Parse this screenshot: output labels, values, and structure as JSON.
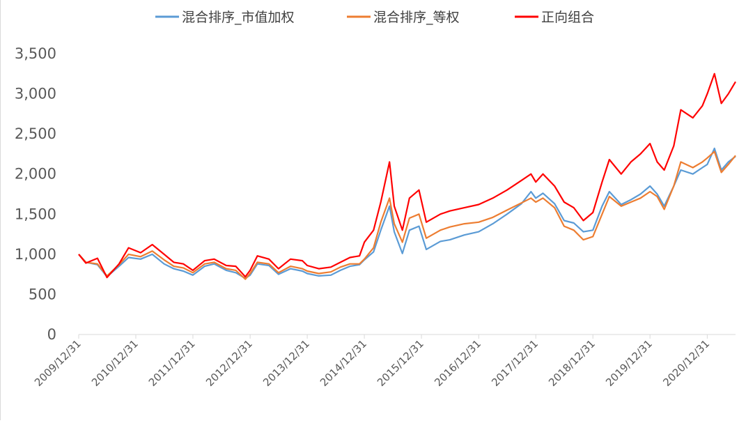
{
  "chart_data": {
    "type": "line",
    "title": "",
    "xlabel": "",
    "ylabel": "",
    "ylim": [
      0,
      3500
    ],
    "y_ticks": [
      0,
      500,
      1000,
      1500,
      2000,
      2500,
      3000,
      3500
    ],
    "y_tick_labels": [
      "0",
      "500",
      "1,000",
      "1,500",
      "2,000",
      "2,500",
      "3,000",
      "3,500"
    ],
    "x_tick_labels": [
      "2009/12/31",
      "2010/12/31",
      "2011/12/31",
      "2012/12/31",
      "2013/12/31",
      "2014/12/31",
      "2015/12/31",
      "2016/12/31",
      "2017/12/31",
      "2018/12/31",
      "2019/12/31",
      "2020/12/31"
    ],
    "x_range": [
      "2009/12/31",
      "2021/06/30"
    ],
    "grid": false,
    "legend_position": "top",
    "series": [
      {
        "name": "混合排序_市值加权",
        "color": "#5b9bd5",
        "points": [
          [
            "2009/12/31",
            1000
          ],
          [
            "2010/02/15",
            900
          ],
          [
            "2010/04/30",
            870
          ],
          [
            "2010/06/30",
            720
          ],
          [
            "2010/09/15",
            850
          ],
          [
            "2010/11/15",
            960
          ],
          [
            "2011/01/31",
            940
          ],
          [
            "2011/04/15",
            1000
          ],
          [
            "2011/06/30",
            880
          ],
          [
            "2011/08/31",
            820
          ],
          [
            "2011/10/31",
            790
          ],
          [
            "2011/12/31",
            740
          ],
          [
            "2012/03/15",
            850
          ],
          [
            "2012/05/15",
            880
          ],
          [
            "2012/07/31",
            800
          ],
          [
            "2012/09/30",
            770
          ],
          [
            "2012/11/30",
            700
          ],
          [
            "2012/12/31",
            740
          ],
          [
            "2013/02/15",
            880
          ],
          [
            "2013/04/30",
            860
          ],
          [
            "2013/06/30",
            750
          ],
          [
            "2013/09/15",
            820
          ],
          [
            "2013/11/30",
            790
          ],
          [
            "2013/12/31",
            760
          ],
          [
            "2014/03/15",
            730
          ],
          [
            "2014/05/31",
            740
          ],
          [
            "2014/07/31",
            800
          ],
          [
            "2014/09/30",
            850
          ],
          [
            "2014/11/30",
            870
          ],
          [
            "2014/12/31",
            930
          ],
          [
            "2015/02/28",
            1030
          ],
          [
            "2015/04/15",
            1300
          ],
          [
            "2015/06/10",
            1600
          ],
          [
            "2015/07/10",
            1280
          ],
          [
            "2015/08/31",
            1010
          ],
          [
            "2015/10/15",
            1300
          ],
          [
            "2015/12/15",
            1350
          ],
          [
            "2016/01/31",
            1060
          ],
          [
            "2016/04/30",
            1160
          ],
          [
            "2016/06/30",
            1180
          ],
          [
            "2016/09/30",
            1240
          ],
          [
            "2016/12/31",
            1280
          ],
          [
            "2017/03/31",
            1380
          ],
          [
            "2017/06/30",
            1500
          ],
          [
            "2017/09/30",
            1630
          ],
          [
            "2017/11/30",
            1780
          ],
          [
            "2017/12/31",
            1700
          ],
          [
            "2018/02/15",
            1760
          ],
          [
            "2018/04/30",
            1630
          ],
          [
            "2018/06/30",
            1420
          ],
          [
            "2018/08/31",
            1390
          ],
          [
            "2018/10/31",
            1280
          ],
          [
            "2018/12/31",
            1300
          ],
          [
            "2019/02/28",
            1600
          ],
          [
            "2019/04/15",
            1780
          ],
          [
            "2019/06/30",
            1620
          ],
          [
            "2019/08/31",
            1680
          ],
          [
            "2019/10/31",
            1750
          ],
          [
            "2019/12/31",
            1850
          ],
          [
            "2020/02/15",
            1750
          ],
          [
            "2020/03/31",
            1600
          ],
          [
            "2020/05/31",
            1850
          ],
          [
            "2020/07/15",
            2050
          ],
          [
            "2020/09/30",
            2000
          ],
          [
            "2020/11/30",
            2080
          ],
          [
            "2020/12/31",
            2120
          ],
          [
            "2021/02/15",
            2320
          ],
          [
            "2021/03/31",
            2050
          ],
          [
            "2021/05/15",
            2150
          ],
          [
            "2021/06/30",
            2220
          ]
        ]
      },
      {
        "name": "混合排序_等权",
        "color": "#ed7d31",
        "points": [
          [
            "2009/12/31",
            1000
          ],
          [
            "2010/02/15",
            900
          ],
          [
            "2010/04/30",
            880
          ],
          [
            "2010/06/30",
            730
          ],
          [
            "2010/09/15",
            870
          ],
          [
            "2010/11/15",
            1000
          ],
          [
            "2011/01/31",
            970
          ],
          [
            "2011/04/15",
            1040
          ],
          [
            "2011/06/30",
            930
          ],
          [
            "2011/08/31",
            850
          ],
          [
            "2011/10/31",
            830
          ],
          [
            "2011/12/31",
            770
          ],
          [
            "2012/03/15",
            880
          ],
          [
            "2012/05/15",
            900
          ],
          [
            "2012/07/31",
            820
          ],
          [
            "2012/09/30",
            800
          ],
          [
            "2012/11/30",
            690
          ],
          [
            "2012/12/31",
            760
          ],
          [
            "2013/02/15",
            900
          ],
          [
            "2013/04/30",
            880
          ],
          [
            "2013/06/30",
            770
          ],
          [
            "2013/09/15",
            850
          ],
          [
            "2013/11/30",
            820
          ],
          [
            "2013/12/31",
            790
          ],
          [
            "2014/03/15",
            760
          ],
          [
            "2014/05/31",
            780
          ],
          [
            "2014/07/31",
            840
          ],
          [
            "2014/09/30",
            880
          ],
          [
            "2014/11/30",
            880
          ],
          [
            "2014/12/31",
            940
          ],
          [
            "2015/02/28",
            1080
          ],
          [
            "2015/04/15",
            1400
          ],
          [
            "2015/06/10",
            1700
          ],
          [
            "2015/07/10",
            1380
          ],
          [
            "2015/08/31",
            1150
          ],
          [
            "2015/10/15",
            1450
          ],
          [
            "2015/12/15",
            1500
          ],
          [
            "2016/01/31",
            1200
          ],
          [
            "2016/04/30",
            1300
          ],
          [
            "2016/06/30",
            1340
          ],
          [
            "2016/09/30",
            1380
          ],
          [
            "2016/12/31",
            1400
          ],
          [
            "2017/03/31",
            1460
          ],
          [
            "2017/06/30",
            1550
          ],
          [
            "2017/09/30",
            1640
          ],
          [
            "2017/11/30",
            1700
          ],
          [
            "2017/12/31",
            1650
          ],
          [
            "2018/02/15",
            1700
          ],
          [
            "2018/04/30",
            1580
          ],
          [
            "2018/06/30",
            1350
          ],
          [
            "2018/08/31",
            1300
          ],
          [
            "2018/10/31",
            1180
          ],
          [
            "2018/12/31",
            1220
          ],
          [
            "2019/02/28",
            1500
          ],
          [
            "2019/04/15",
            1720
          ],
          [
            "2019/06/30",
            1600
          ],
          [
            "2019/08/31",
            1650
          ],
          [
            "2019/10/31",
            1700
          ],
          [
            "2019/12/31",
            1780
          ],
          [
            "2020/02/15",
            1720
          ],
          [
            "2020/03/31",
            1560
          ],
          [
            "2020/05/31",
            1850
          ],
          [
            "2020/07/15",
            2150
          ],
          [
            "2020/09/30",
            2080
          ],
          [
            "2020/11/30",
            2150
          ],
          [
            "2020/12/31",
            2200
          ],
          [
            "2021/02/15",
            2280
          ],
          [
            "2021/03/31",
            2020
          ],
          [
            "2021/05/15",
            2120
          ],
          [
            "2021/06/30",
            2230
          ]
        ]
      },
      {
        "name": "正向组合",
        "color": "#ff0000",
        "points": [
          [
            "2009/12/31",
            1000
          ],
          [
            "2010/02/15",
            890
          ],
          [
            "2010/04/30",
            950
          ],
          [
            "2010/06/30",
            710
          ],
          [
            "2010/09/15",
            880
          ],
          [
            "2010/11/15",
            1080
          ],
          [
            "2011/01/31",
            1020
          ],
          [
            "2011/04/15",
            1120
          ],
          [
            "2011/06/30",
            1000
          ],
          [
            "2011/08/31",
            900
          ],
          [
            "2011/10/31",
            880
          ],
          [
            "2011/12/31",
            800
          ],
          [
            "2012/03/15",
            920
          ],
          [
            "2012/05/15",
            940
          ],
          [
            "2012/07/31",
            860
          ],
          [
            "2012/09/30",
            850
          ],
          [
            "2012/11/30",
            720
          ],
          [
            "2012/12/31",
            800
          ],
          [
            "2013/02/15",
            980
          ],
          [
            "2013/04/30",
            940
          ],
          [
            "2013/06/30",
            820
          ],
          [
            "2013/09/15",
            940
          ],
          [
            "2013/11/30",
            920
          ],
          [
            "2013/12/31",
            860
          ],
          [
            "2014/03/15",
            820
          ],
          [
            "2014/05/31",
            840
          ],
          [
            "2014/07/31",
            900
          ],
          [
            "2014/09/30",
            960
          ],
          [
            "2014/11/30",
            980
          ],
          [
            "2014/12/31",
            1150
          ],
          [
            "2015/02/28",
            1300
          ],
          [
            "2015/04/15",
            1650
          ],
          [
            "2015/06/10",
            2150
          ],
          [
            "2015/07/10",
            1600
          ],
          [
            "2015/08/31",
            1300
          ],
          [
            "2015/10/15",
            1700
          ],
          [
            "2015/12/15",
            1800
          ],
          [
            "2016/01/31",
            1400
          ],
          [
            "2016/04/30",
            1500
          ],
          [
            "2016/06/30",
            1540
          ],
          [
            "2016/09/30",
            1580
          ],
          [
            "2016/12/31",
            1620
          ],
          [
            "2017/03/31",
            1700
          ],
          [
            "2017/06/30",
            1800
          ],
          [
            "2017/09/30",
            1920
          ],
          [
            "2017/11/30",
            2000
          ],
          [
            "2017/12/31",
            1900
          ],
          [
            "2018/02/15",
            2000
          ],
          [
            "2018/04/30",
            1850
          ],
          [
            "2018/06/30",
            1650
          ],
          [
            "2018/08/31",
            1580
          ],
          [
            "2018/10/31",
            1420
          ],
          [
            "2018/12/31",
            1520
          ],
          [
            "2019/02/28",
            1900
          ],
          [
            "2019/04/15",
            2180
          ],
          [
            "2019/06/30",
            2000
          ],
          [
            "2019/08/31",
            2150
          ],
          [
            "2019/10/31",
            2250
          ],
          [
            "2019/12/31",
            2380
          ],
          [
            "2020/02/15",
            2150
          ],
          [
            "2020/03/31",
            2050
          ],
          [
            "2020/05/31",
            2350
          ],
          [
            "2020/07/15",
            2800
          ],
          [
            "2020/09/30",
            2700
          ],
          [
            "2020/11/30",
            2850
          ],
          [
            "2020/12/31",
            3000
          ],
          [
            "2021/02/15",
            3250
          ],
          [
            "2021/03/31",
            2880
          ],
          [
            "2021/05/15",
            3000
          ],
          [
            "2021/06/30",
            3150
          ]
        ]
      }
    ]
  }
}
